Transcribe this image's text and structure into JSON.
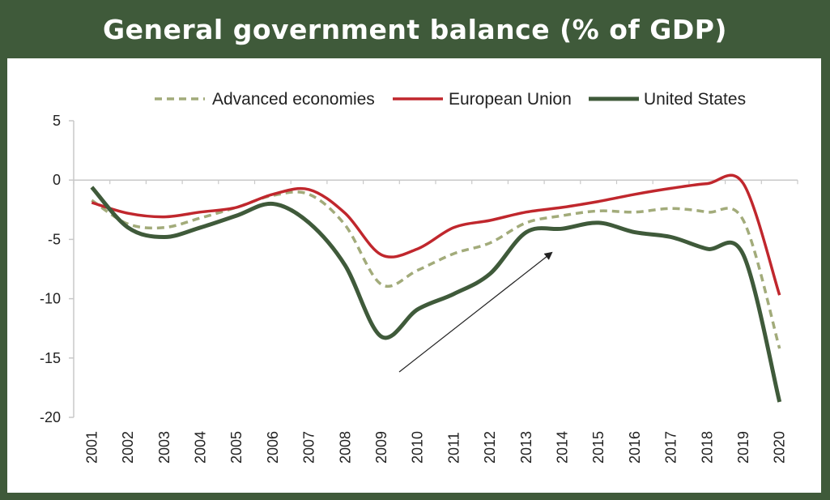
{
  "chart_data": {
    "type": "line",
    "title": "General government balance (% of GDP)",
    "x": [
      "2001",
      "2002",
      "2003",
      "2004",
      "2005",
      "2006",
      "2007",
      "2008",
      "2009",
      "2010",
      "2011",
      "2012",
      "2013",
      "2014",
      "2015",
      "2016",
      "2017",
      "2018",
      "2019",
      "2020"
    ],
    "ylim": [
      -20,
      5
    ],
    "yticks": [
      5,
      0,
      -5,
      -10,
      -15,
      -20
    ],
    "grid": false,
    "legend_position": "top",
    "series": [
      {
        "name": "Advanced economies",
        "color": "#a2ab7a",
        "dash": true,
        "values": [
          -1.7,
          -3.7,
          -4.0,
          -3.2,
          -2.3,
          -1.3,
          -1.2,
          -3.8,
          -8.8,
          -7.6,
          -6.2,
          -5.3,
          -3.6,
          -3.0,
          -2.6,
          -2.7,
          -2.4,
          -2.7,
          -3.4,
          -14.2
        ]
      },
      {
        "name": "European Union",
        "color": "#c0272d",
        "dash": false,
        "values": [
          -1.9,
          -2.8,
          -3.1,
          -2.7,
          -2.3,
          -1.2,
          -0.8,
          -2.8,
          -6.3,
          -5.8,
          -4.0,
          -3.4,
          -2.7,
          -2.3,
          -1.8,
          -1.2,
          -0.7,
          -0.3,
          -0.3,
          -9.7
        ]
      },
      {
        "name": "United States",
        "color": "#3f5a3a",
        "dash": false,
        "values": [
          -0.6,
          -4.0,
          -4.8,
          -4.0,
          -3.0,
          -2.0,
          -3.6,
          -7.2,
          -13.2,
          -10.9,
          -9.6,
          -7.9,
          -4.4,
          -4.1,
          -3.6,
          -4.4,
          -4.8,
          -5.8,
          -6.3,
          -18.7
        ]
      }
    ],
    "annotation": "upward arrow from 2009 to 2014 indicating recovery"
  },
  "colors": {
    "frame": "#3f5a3a",
    "axis": "#c8c8c8",
    "arrow": "#222222"
  }
}
